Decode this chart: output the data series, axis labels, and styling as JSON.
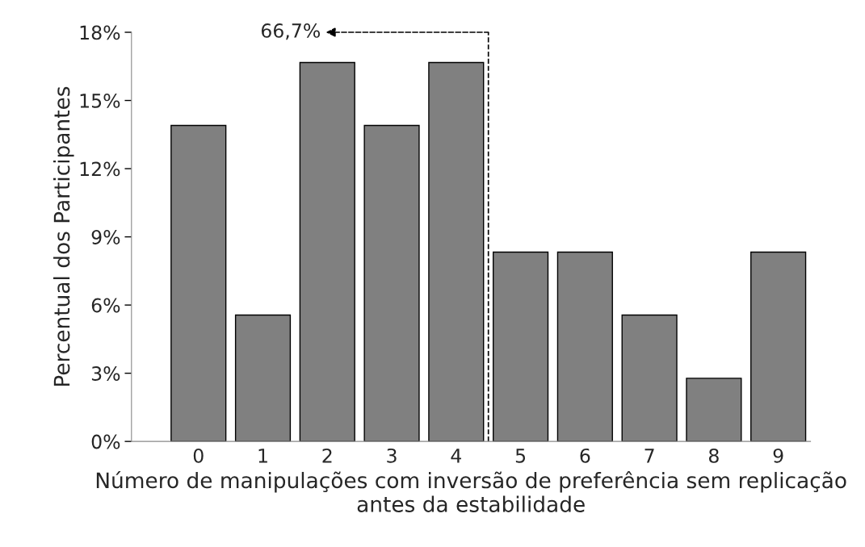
{
  "chart_data": {
    "type": "bar",
    "xlabel": "Número de manipulações com inversão de preferência sem replicação antes da estabilidade",
    "ylabel": "Percentual dos Participantes",
    "categories": [
      "0",
      "1",
      "2",
      "3",
      "4",
      "5",
      "6",
      "7",
      "8",
      "9"
    ],
    "values": [
      13.9,
      5.56,
      16.67,
      13.9,
      16.67,
      8.33,
      8.33,
      5.56,
      2.78,
      8.33
    ],
    "color": "#808080",
    "ylim": [
      0,
      18
    ],
    "yticks": [
      {
        "value": 0,
        "label": "0%"
      },
      {
        "value": 3,
        "label": "3%"
      },
      {
        "value": 6,
        "label": "6%"
      },
      {
        "value": 9,
        "label": "9%"
      },
      {
        "value": 12,
        "label": "12%"
      },
      {
        "value": 15,
        "label": "15%"
      },
      {
        "value": 18,
        "label": "18%"
      }
    ],
    "annotations": [
      "66,7%"
    ],
    "grid": false,
    "legend": false
  }
}
